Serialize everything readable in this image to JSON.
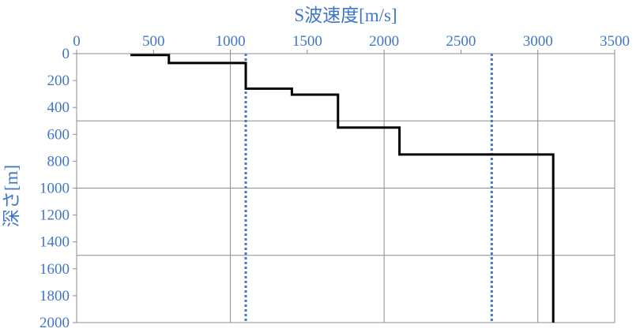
{
  "chart_data": {
    "type": "line",
    "title": "",
    "xlabel": "S波速度[m/s]",
    "ylabel": "深さ[m]",
    "xlim": [
      0,
      3500
    ],
    "ylim": [
      0,
      2000
    ],
    "x_axis_position": "top",
    "y_axis_inverted": true,
    "x_ticks": [
      0,
      500,
      1000,
      1500,
      2000,
      2500,
      3000,
      3500
    ],
    "y_ticks": [
      0,
      200,
      400,
      600,
      800,
      1000,
      1200,
      1400,
      1600,
      1800,
      2000
    ],
    "x_gridlines": [
      1000,
      2000,
      3000,
      3500
    ],
    "y_gridlines": [
      500,
      1000,
      1500,
      2000
    ],
    "legend": "none",
    "colors": {
      "profile": "#000000",
      "reference": "#3f76c8",
      "axis_text": "#3f76c8",
      "grid": "#8c8c8c"
    },
    "series": [
      {
        "style": "solid-step",
        "points": [
          [
            350,
            10
          ],
          [
            600,
            10
          ],
          [
            600,
            70
          ],
          [
            1100,
            70
          ],
          [
            1100,
            260
          ],
          [
            1400,
            260
          ],
          [
            1400,
            305
          ],
          [
            1700,
            305
          ],
          [
            1700,
            550
          ],
          [
            2100,
            550
          ],
          [
            2100,
            750
          ],
          [
            3100,
            750
          ],
          [
            3100,
            2000
          ]
        ]
      },
      {
        "style": "dotted-vertical",
        "points": [
          [
            1100,
            0
          ],
          [
            1100,
            2000
          ]
        ]
      },
      {
        "style": "dotted-vertical",
        "points": [
          [
            2700,
            0
          ],
          [
            2700,
            2000
          ]
        ]
      }
    ]
  }
}
